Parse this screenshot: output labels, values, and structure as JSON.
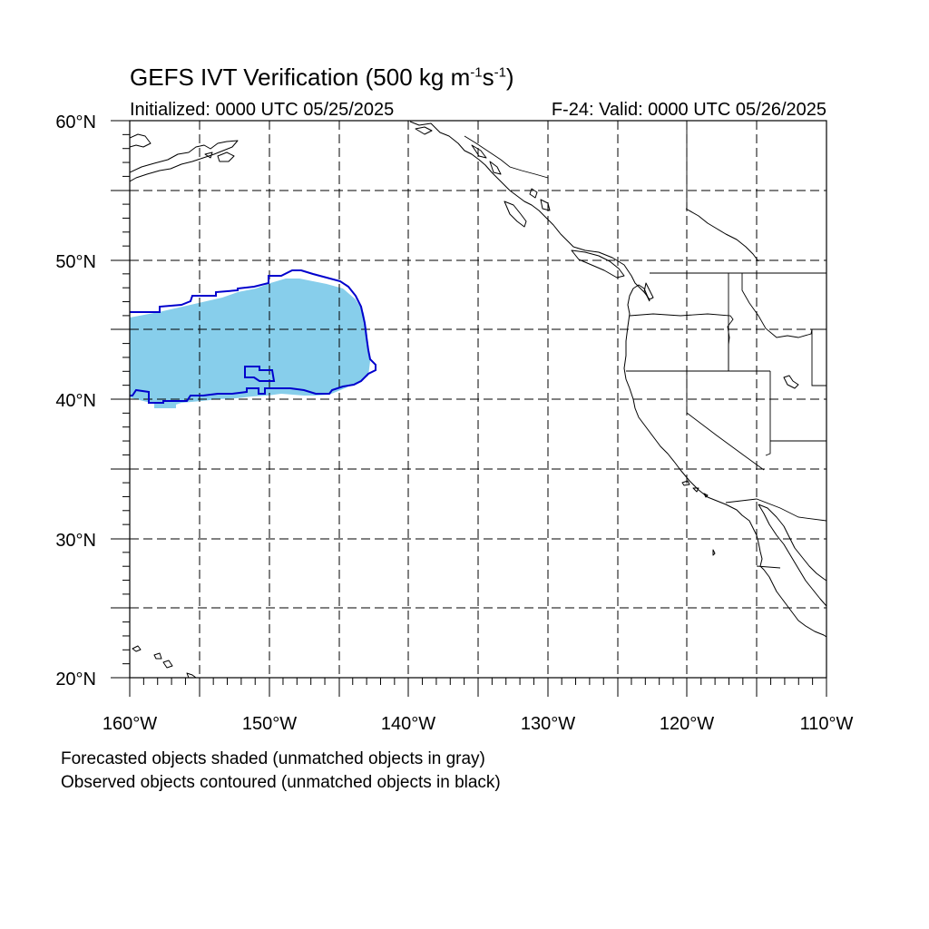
{
  "title": {
    "text": "GEFS IVT Verification (500 kg m",
    "sup1": "-1",
    "mid": "s",
    "sup2": "-1",
    "end": ")"
  },
  "subtitle": {
    "initialized": "Initialized: 0000 UTC 05/25/2025",
    "valid": "F-24: Valid: 0000 UTC 05/26/2025"
  },
  "lat_labels": [
    "60°N",
    "50°N",
    "40°N",
    "30°N",
    "20°N"
  ],
  "lon_labels": [
    "160°W",
    "150°W",
    "140°W",
    "130°W",
    "120°W",
    "110°W"
  ],
  "footnotes": [
    "Forecasted objects shaded (unmatched objects in gray)",
    "Observed objects contoured (unmatched objects in black)"
  ],
  "colors": {
    "forecast_fill": "#87ceeb",
    "observed_contour": "#0000cd",
    "coastline": "#000000",
    "grid": "#000000"
  },
  "map": {
    "lon_range": [
      -160,
      -110
    ],
    "lat_range": [
      20,
      60
    ],
    "grid_spacing_deg": 5
  }
}
